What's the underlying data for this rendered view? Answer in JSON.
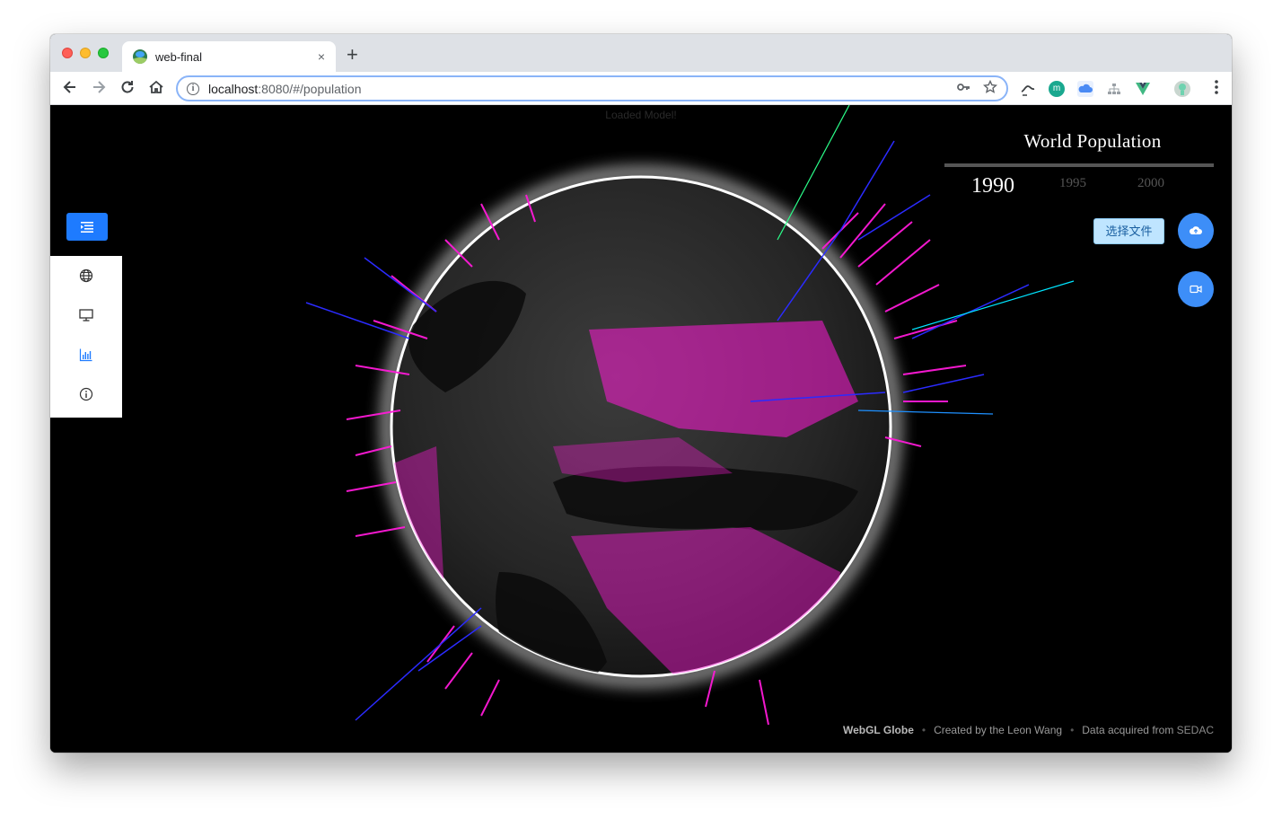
{
  "browser": {
    "tab_title": "web-final",
    "tab_close": "×",
    "new_tab": "+",
    "url_host": "localhost",
    "url_rest": ":8080/#/population",
    "icons": [
      "back-arrow-icon",
      "forward-arrow-icon",
      "reload-icon",
      "home-icon",
      "info-icon",
      "key-icon",
      "star-icon",
      "translate-extension-icon",
      "m-extension-icon",
      "cloud-extension-icon",
      "sitemap-extension-icon",
      "vue-devtools-icon",
      "profile-avatar-icon",
      "kebab-menu-icon"
    ]
  },
  "app": {
    "status_text": "Loaded Model!",
    "panel_title": "World Population",
    "years": [
      "1990",
      "1995",
      "2000"
    ],
    "active_year": "1990",
    "file_button": "选择文件",
    "sidebar_items": [
      "globe-icon",
      "monitor-icon",
      "bar-chart-icon",
      "info-circle-icon"
    ],
    "active_sidebar_item": "bar-chart-icon",
    "fab_buttons": [
      "cloud-upload-icon",
      "video-camera-icon"
    ],
    "footer": {
      "brand": "WebGL Globe",
      "credit": "Created by the Leon Wang",
      "data_prefix": "Data acquired from",
      "data_source": "SEDAC"
    },
    "colors": {
      "accent_blue": "#1e7bff",
      "bar_magenta": "#ff1ad9",
      "bar_blue": "#2b2bff",
      "bar_cyan": "#00e5ff",
      "bar_green": "#2bff8a"
    }
  }
}
